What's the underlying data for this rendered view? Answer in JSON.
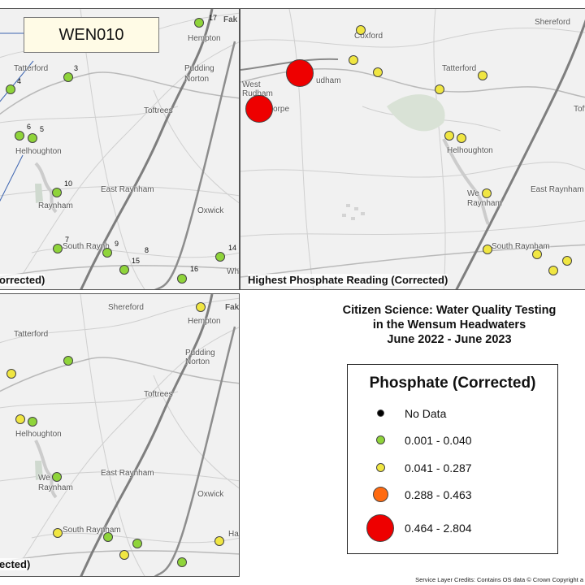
{
  "callout": {
    "label": "WEN010"
  },
  "title": {
    "line1": "Citizen Science: Water Quality Testing",
    "line2": "in the Wensum Headwaters",
    "line3": "June 2022 - June 2023"
  },
  "colors": {
    "no_data": "#000000",
    "class1": "#8fd43a",
    "class2": "#f0e642",
    "class3": "#ff6a10",
    "class4": "#ee0000"
  },
  "legend": {
    "title": "Phosphate (Corrected)",
    "items": [
      {
        "label": "No Data",
        "color": "#000000",
        "size": "small"
      },
      {
        "label": "0.001 - 0.040",
        "color": "#8fd43a",
        "size": "small"
      },
      {
        "label": "0.041 - 0.287",
        "color": "#f0e642",
        "size": "small"
      },
      {
        "label": "0.288 - 0.463",
        "color": "#ff6a10",
        "size": "medium"
      },
      {
        "label": "0.464 - 2.804",
        "color": "#ee0000",
        "size": "large"
      }
    ]
  },
  "panels": {
    "top_left": {
      "caption": "orrected)"
    },
    "top_right": {
      "caption": "Highest Phosphate Reading (Corrected)"
    },
    "bottom_left": {
      "caption": "ected)"
    }
  },
  "places": {
    "tl": [
      "Fak",
      "Hempton",
      "Pudding",
      "Norton",
      "Tatterford",
      "Toftrees",
      "Helhoughton",
      "East Raynham",
      "Raynham",
      "Oxwick",
      "South Raynh",
      "Whis"
    ],
    "tr": [
      "Shereford",
      "Coxford",
      "Tatterford",
      "West",
      "Rudham",
      "udham",
      "orpe",
      "Toft",
      "Helhoughton",
      "We",
      "Raynham",
      "East Raynham",
      "South Raynham"
    ],
    "bl": [
      "Shereford",
      "Fak",
      "Hempton",
      "Tatterford",
      "Pudding",
      "Norton",
      "Toftrees",
      "Helhoughton",
      "East Raynham",
      "We",
      "Raynham",
      "Oxwick",
      "South Raynham",
      "Ha"
    ]
  },
  "site_numbers": [
    "17",
    "3",
    "4",
    "6",
    "5",
    "10",
    "7",
    "9",
    "8",
    "15",
    "16",
    "14"
  ],
  "credits": "Service Layer Credits: Contains OS data © Crown Copyright a"
}
